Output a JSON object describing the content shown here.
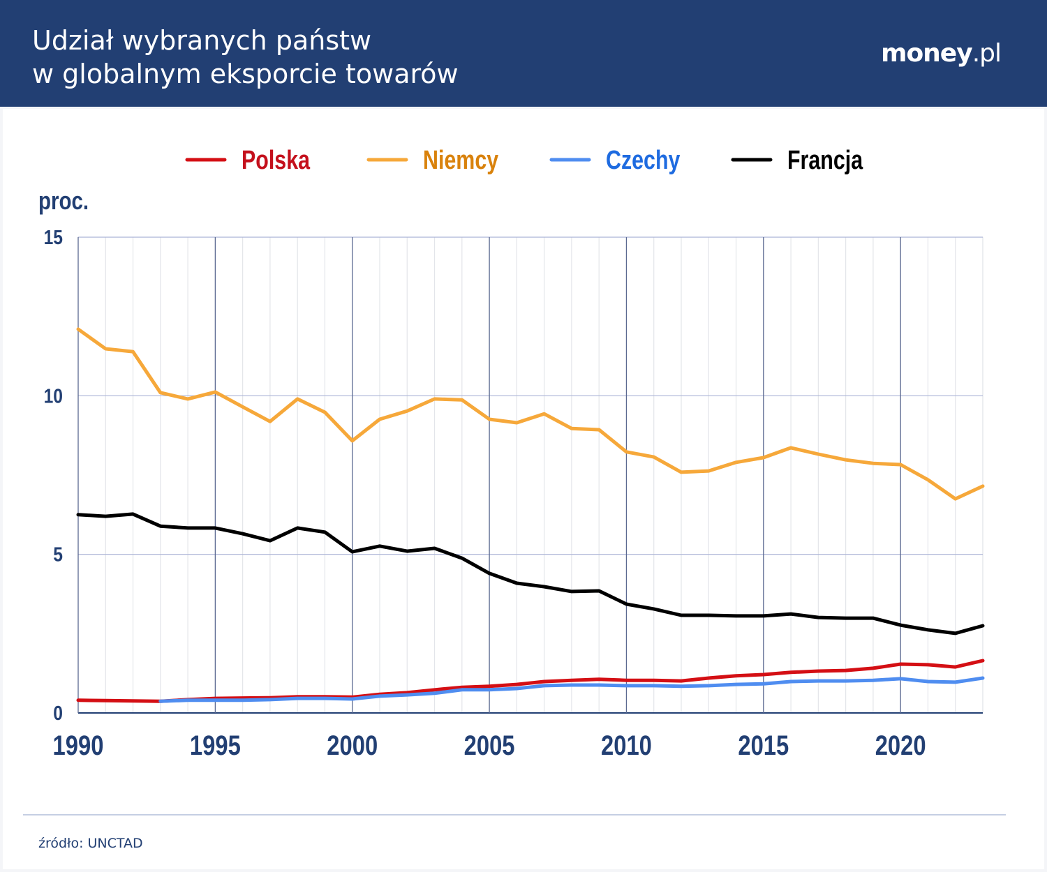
{
  "header": {
    "title_line1": "Udział wybranych państw",
    "title_line2": "w globalnym eksporcie towarów",
    "logo": "money.pl"
  },
  "footer": {
    "source": "źródło: UNCTAD"
  },
  "chart_data": {
    "type": "line",
    "title": "Udział wybranych państw w globalnym eksporcie towarów",
    "xlabel": "",
    "ylabel": "proc.",
    "xlim": [
      1990,
      2023
    ],
    "ylim": [
      0,
      15
    ],
    "xticks": [
      1990,
      1995,
      2000,
      2005,
      2010,
      2015,
      2020
    ],
    "yticks": [
      0,
      5,
      10,
      15
    ],
    "grid": true,
    "legend": "top",
    "x": [
      1990,
      1991,
      1992,
      1993,
      1994,
      1995,
      1996,
      1997,
      1998,
      1999,
      2000,
      2001,
      2002,
      2003,
      2004,
      2005,
      2006,
      2007,
      2008,
      2009,
      2010,
      2011,
      2012,
      2013,
      2014,
      2015,
      2016,
      2017,
      2018,
      2019,
      2020,
      2021,
      2022,
      2023
    ],
    "series": [
      {
        "name": "Polska",
        "color": "#d40f14",
        "label_color": "#c4101c",
        "values": [
          0.4,
          0.39,
          0.38,
          0.37,
          0.42,
          0.46,
          0.47,
          0.48,
          0.51,
          0.51,
          0.5,
          0.59,
          0.64,
          0.73,
          0.81,
          0.84,
          0.9,
          0.99,
          1.03,
          1.06,
          1.03,
          1.03,
          1.01,
          1.1,
          1.17,
          1.21,
          1.28,
          1.32,
          1.34,
          1.41,
          1.54,
          1.52,
          1.45,
          1.65
        ]
      },
      {
        "name": "Niemcy",
        "color": "#f6a83a",
        "label_color": "#d9820c",
        "values": [
          12.1,
          11.48,
          11.39,
          10.1,
          9.9,
          10.12,
          9.65,
          9.19,
          9.9,
          9.48,
          8.58,
          9.26,
          9.52,
          9.9,
          9.87,
          9.26,
          9.15,
          9.43,
          8.97,
          8.93,
          8.23,
          8.07,
          7.59,
          7.63,
          7.9,
          8.05,
          8.36,
          8.16,
          7.98,
          7.87,
          7.83,
          7.35,
          6.75,
          7.15
        ]
      },
      {
        "name": "Czechy",
        "color": "#4f8df0",
        "label_color": "#1e6be0",
        "values": [
          null,
          null,
          null,
          0.37,
          0.4,
          0.4,
          0.4,
          0.42,
          0.46,
          0.46,
          0.44,
          0.53,
          0.57,
          0.62,
          0.73,
          0.73,
          0.77,
          0.86,
          0.88,
          0.88,
          0.86,
          0.86,
          0.84,
          0.86,
          0.9,
          0.92,
          0.99,
          1.01,
          1.01,
          1.03,
          1.08,
          0.99,
          0.97,
          1.1
        ]
      },
      {
        "name": "Francja",
        "color": "#000000",
        "label_color": "#000000",
        "values": [
          6.25,
          6.2,
          6.27,
          5.89,
          5.83,
          5.83,
          5.65,
          5.43,
          5.83,
          5.7,
          5.08,
          5.26,
          5.1,
          5.19,
          4.88,
          4.4,
          4.09,
          3.98,
          3.83,
          3.85,
          3.43,
          3.28,
          3.08,
          3.08,
          3.06,
          3.06,
          3.12,
          3.01,
          2.99,
          2.99,
          2.77,
          2.62,
          2.51,
          2.75
        ]
      }
    ]
  }
}
